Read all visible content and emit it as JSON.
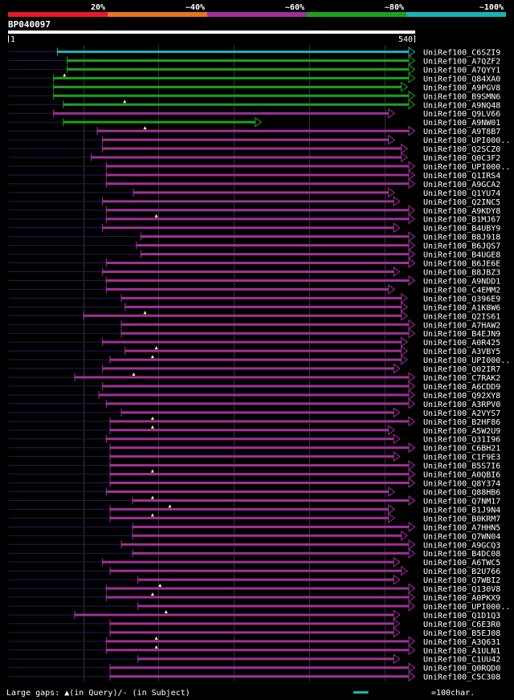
{
  "scale": {
    "labels": [
      "20%",
      "~40%",
      "~60%",
      "~80%",
      "~100%"
    ],
    "colors": [
      "#e8182b",
      "#e8741e",
      "#a0309a",
      "#1da11d",
      "#16b4b4"
    ]
  },
  "query": {
    "id": "BP040097",
    "start": "1",
    "end": "540",
    "length": 540
  },
  "legend": {
    "gaps_text": "Large gaps: ▲(in Query)/- (in Subject)",
    "scale_text": "=100char.",
    "scale_chars": 100
  },
  "colors": {
    "cyan": "#16b4b4",
    "green": "#1da11d",
    "purple": "#a0309a",
    "thin": "#1e1e5a"
  },
  "hits": [
    {
      "name": "UniRef100_C6SZI9",
      "color": "cyan",
      "start": 65,
      "end": 540,
      "thin_start": 1,
      "mark": null
    },
    {
      "name": "UniRef100_A7QZF2",
      "color": "green",
      "start": 78,
      "end": 540,
      "thin_start": 1,
      "mark": null
    },
    {
      "name": "UniRef100_A7QYY1",
      "color": "green",
      "start": 78,
      "end": 540,
      "thin_start": 1,
      "mark": null
    },
    {
      "name": "UniRef100_Q84XA0",
      "color": "green",
      "start": 60,
      "end": 540,
      "thin_start": 1,
      "mark": 75
    },
    {
      "name": "UniRef100_A9PGV8",
      "color": "green",
      "start": 60,
      "end": 530,
      "thin_start": 1,
      "mark": null
    },
    {
      "name": "UniRef100_B9SMN6",
      "color": "green",
      "start": 60,
      "end": 540,
      "thin_start": 1,
      "mark": null
    },
    {
      "name": "UniRef100_A9NQ48",
      "color": "green",
      "start": 73,
      "end": 540,
      "thin_start": 1,
      "mark": 155
    },
    {
      "name": "UniRef100_Q9LV66",
      "color": "purple",
      "start": 60,
      "end": 513,
      "thin_start": 1,
      "mark": null
    },
    {
      "name": "UniRef100_A9NW01",
      "color": "green",
      "start": 73,
      "end": 336,
      "thin_start": 1,
      "mark": null
    },
    {
      "name": "UniRef100_A9T8B7",
      "color": "purple",
      "start": 118,
      "end": 540,
      "thin_start": 1,
      "mark": 182
    },
    {
      "name": "UniRef100_UPI000..",
      "color": "purple",
      "start": 125,
      "end": 513,
      "thin_start": 1,
      "mark": null
    },
    {
      "name": "UniRef100_Q2SCZ0",
      "color": "purple",
      "start": 125,
      "end": 530,
      "thin_start": 1,
      "mark": null
    },
    {
      "name": "UniRef100_Q0C3F2",
      "color": "purple",
      "start": 110,
      "end": 530,
      "thin_start": 1,
      "mark": null
    },
    {
      "name": "UniRef100_UPI000..",
      "color": "purple",
      "start": 130,
      "end": 540,
      "thin_start": 1,
      "mark": null
    },
    {
      "name": "UniRef100_Q1IRS4",
      "color": "purple",
      "start": 130,
      "end": 540,
      "thin_start": 1,
      "mark": null
    },
    {
      "name": "UniRef100_A9GCA2",
      "color": "purple",
      "start": 130,
      "end": 540,
      "thin_start": 1,
      "mark": null
    },
    {
      "name": "UniRef100_Q1YU74",
      "color": "purple",
      "start": 166,
      "end": 513,
      "thin_start": 1,
      "mark": null
    },
    {
      "name": "UniRef100_Q2INC5",
      "color": "purple",
      "start": 125,
      "end": 520,
      "thin_start": 1,
      "mark": null
    },
    {
      "name": "UniRef100_A9KDY8",
      "color": "purple",
      "start": 130,
      "end": 540,
      "thin_start": 1,
      "mark": null
    },
    {
      "name": "UniRef100_B1MJ67",
      "color": "purple",
      "start": 130,
      "end": 540,
      "thin_start": 1,
      "mark": 197
    },
    {
      "name": "UniRef100_B4UBY9",
      "color": "purple",
      "start": 125,
      "end": 520,
      "thin_start": 1,
      "mark": null
    },
    {
      "name": "UniRef100_B8J918",
      "color": "purple",
      "start": 176,
      "end": 540,
      "thin_start": 1,
      "mark": null
    },
    {
      "name": "UniRef100_B6JQS7",
      "color": "purple",
      "start": 170,
      "end": 540,
      "thin_start": 1,
      "mark": null
    },
    {
      "name": "UniRef100_B4UGE8",
      "color": "purple",
      "start": 176,
      "end": 540,
      "thin_start": 1,
      "mark": null
    },
    {
      "name": "UniRef100_B6JE6E",
      "color": "purple",
      "start": 130,
      "end": 540,
      "thin_start": 1,
      "mark": null
    },
    {
      "name": "UniRef100_B8JBZ3",
      "color": "purple",
      "start": 125,
      "end": 520,
      "thin_start": 1,
      "mark": null
    },
    {
      "name": "UniRef100_A9NDD1",
      "color": "purple",
      "start": 130,
      "end": 540,
      "thin_start": 1,
      "mark": null
    },
    {
      "name": "UniRef100_C4EMM2",
      "color": "purple",
      "start": 130,
      "end": 513,
      "thin_start": 1,
      "mark": null
    },
    {
      "name": "UniRef100_Q396E9",
      "color": "purple",
      "start": 150,
      "end": 530,
      "thin_start": 1,
      "mark": null
    },
    {
      "name": "UniRef100_A1K8W6",
      "color": "purple",
      "start": 155,
      "end": 530,
      "thin_start": 1,
      "mark": null
    },
    {
      "name": "UniRef100_Q2IS61",
      "color": "purple",
      "start": 100,
      "end": 530,
      "thin_start": 1,
      "mark": 182
    },
    {
      "name": "UniRef100_A7HAW2",
      "color": "purple",
      "start": 150,
      "end": 540,
      "thin_start": 1,
      "mark": null
    },
    {
      "name": "UniRef100_B4EJN9",
      "color": "purple",
      "start": 150,
      "end": 540,
      "thin_start": 1,
      "mark": null
    },
    {
      "name": "UniRef100_A0R425",
      "color": "purple",
      "start": 125,
      "end": 530,
      "thin_start": 1,
      "mark": null
    },
    {
      "name": "UniRef100_A3VBY5",
      "color": "purple",
      "start": 155,
      "end": 530,
      "thin_start": 1,
      "mark": 197
    },
    {
      "name": "UniRef100_UPI000..",
      "color": "purple",
      "start": 135,
      "end": 530,
      "thin_start": 1,
      "mark": 192
    },
    {
      "name": "UniRef100_Q02IR7",
      "color": "purple",
      "start": 125,
      "end": 520,
      "thin_start": 1,
      "mark": null
    },
    {
      "name": "UniRef100_C7RAK2",
      "color": "purple",
      "start": 88,
      "end": 540,
      "thin_start": 1,
      "mark": 167
    },
    {
      "name": "UniRef100_A6CDD9",
      "color": "purple",
      "start": 125,
      "end": 540,
      "thin_start": 1,
      "mark": null
    },
    {
      "name": "UniRef100_Q92XY8",
      "color": "purple",
      "start": 120,
      "end": 540,
      "thin_start": 1,
      "mark": null
    },
    {
      "name": "UniRef100_A3RPV0",
      "color": "purple",
      "start": 130,
      "end": 540,
      "thin_start": 1,
      "mark": null
    },
    {
      "name": "UniRef100_A2VYS7",
      "color": "purple",
      "start": 150,
      "end": 520,
      "thin_start": 1,
      "mark": null
    },
    {
      "name": "UniRef100_B2HF86",
      "color": "purple",
      "start": 135,
      "end": 540,
      "thin_start": 1,
      "mark": 192
    },
    {
      "name": "UniRef100_A5W2U9",
      "color": "purple",
      "start": 135,
      "end": 513,
      "thin_start": 1,
      "mark": 192
    },
    {
      "name": "UniRef100_Q31I96",
      "color": "purple",
      "start": 130,
      "end": 520,
      "thin_start": 1,
      "mark": null
    },
    {
      "name": "UniRef100_C6BH21",
      "color": "purple",
      "start": 135,
      "end": 540,
      "thin_start": 1,
      "mark": null
    },
    {
      "name": "UniRef100_C1F9E3",
      "color": "purple",
      "start": 135,
      "end": 520,
      "thin_start": 1,
      "mark": null
    },
    {
      "name": "UniRef100_B5S7I6",
      "color": "purple",
      "start": 135,
      "end": 540,
      "thin_start": 1,
      "mark": null
    },
    {
      "name": "UniRef100_A0QBI6",
      "color": "purple",
      "start": 135,
      "end": 540,
      "thin_start": 1,
      "mark": 192
    },
    {
      "name": "UniRef100_Q8Y374",
      "color": "purple",
      "start": 135,
      "end": 540,
      "thin_start": 1,
      "mark": null
    },
    {
      "name": "UniRef100_Q88HB6",
      "color": "purple",
      "start": 130,
      "end": 513,
      "thin_start": 1,
      "mark": null
    },
    {
      "name": "UniRef100_Q7NM17",
      "color": "purple",
      "start": 165,
      "end": 540,
      "thin_start": 1,
      "mark": 192
    },
    {
      "name": "UniRef100_B1J9N4",
      "color": "purple",
      "start": 135,
      "end": 513,
      "thin_start": 1,
      "mark": 215
    },
    {
      "name": "UniRef100_B0KRM7",
      "color": "purple",
      "start": 135,
      "end": 513,
      "thin_start": 1,
      "mark": 192
    },
    {
      "name": "UniRef100_A7HHN5",
      "color": "purple",
      "start": 165,
      "end": 540,
      "thin_start": 1,
      "mark": null
    },
    {
      "name": "UniRef100_Q7WN04",
      "color": "purple",
      "start": 165,
      "end": 530,
      "thin_start": 1,
      "mark": null
    },
    {
      "name": "UniRef100_A9GCQ3",
      "color": "purple",
      "start": 150,
      "end": 540,
      "thin_start": 1,
      "mark": null
    },
    {
      "name": "UniRef100_B4DC08",
      "color": "purple",
      "start": 165,
      "end": 540,
      "thin_start": 1,
      "mark": null
    },
    {
      "name": "UniRef100_A6TWC5",
      "color": "purple",
      "start": 125,
      "end": 520,
      "thin_start": 1,
      "mark": null
    },
    {
      "name": "UniRef100_B2U766",
      "color": "purple",
      "start": 135,
      "end": 530,
      "thin_start": 1,
      "mark": null
    },
    {
      "name": "UniRef100_Q7WBI2",
      "color": "purple",
      "start": 172,
      "end": 520,
      "thin_start": 1,
      "mark": null
    },
    {
      "name": "UniRef100_Q130V8",
      "color": "purple",
      "start": 130,
      "end": 540,
      "thin_start": 1,
      "mark": 202
    },
    {
      "name": "UniRef100_A0PKX9",
      "color": "purple",
      "start": 130,
      "end": 540,
      "thin_start": 1,
      "mark": 192
    },
    {
      "name": "UniRef100_UPI000..",
      "color": "purple",
      "start": 172,
      "end": 540,
      "thin_start": 1,
      "mark": null
    },
    {
      "name": "UniRef100_Q1D1Q3",
      "color": "purple",
      "start": 88,
      "end": 520,
      "thin_start": 1,
      "mark": 210
    },
    {
      "name": "UniRef100_C6E3R0",
      "color": "purple",
      "start": 135,
      "end": 520,
      "thin_start": 1,
      "mark": null
    },
    {
      "name": "UniRef100_B5EJ08",
      "color": "purple",
      "start": 135,
      "end": 520,
      "thin_start": 1,
      "mark": null
    },
    {
      "name": "UniRef100_A3Q631",
      "color": "purple",
      "start": 130,
      "end": 540,
      "thin_start": 1,
      "mark": 197
    },
    {
      "name": "UniRef100_A1ULN1",
      "color": "purple",
      "start": 130,
      "end": 540,
      "thin_start": 1,
      "mark": 197
    },
    {
      "name": "UniRef100_C1UU42",
      "color": "purple",
      "start": 172,
      "end": 520,
      "thin_start": 1,
      "mark": null
    },
    {
      "name": "UniRef100_Q0RQD0",
      "color": "purple",
      "start": 135,
      "end": 540,
      "thin_start": 1,
      "mark": null
    },
    {
      "name": "UniRef100_C5C308",
      "color": "purple",
      "start": 135,
      "end": 540,
      "thin_start": 1,
      "mark": null
    }
  ]
}
